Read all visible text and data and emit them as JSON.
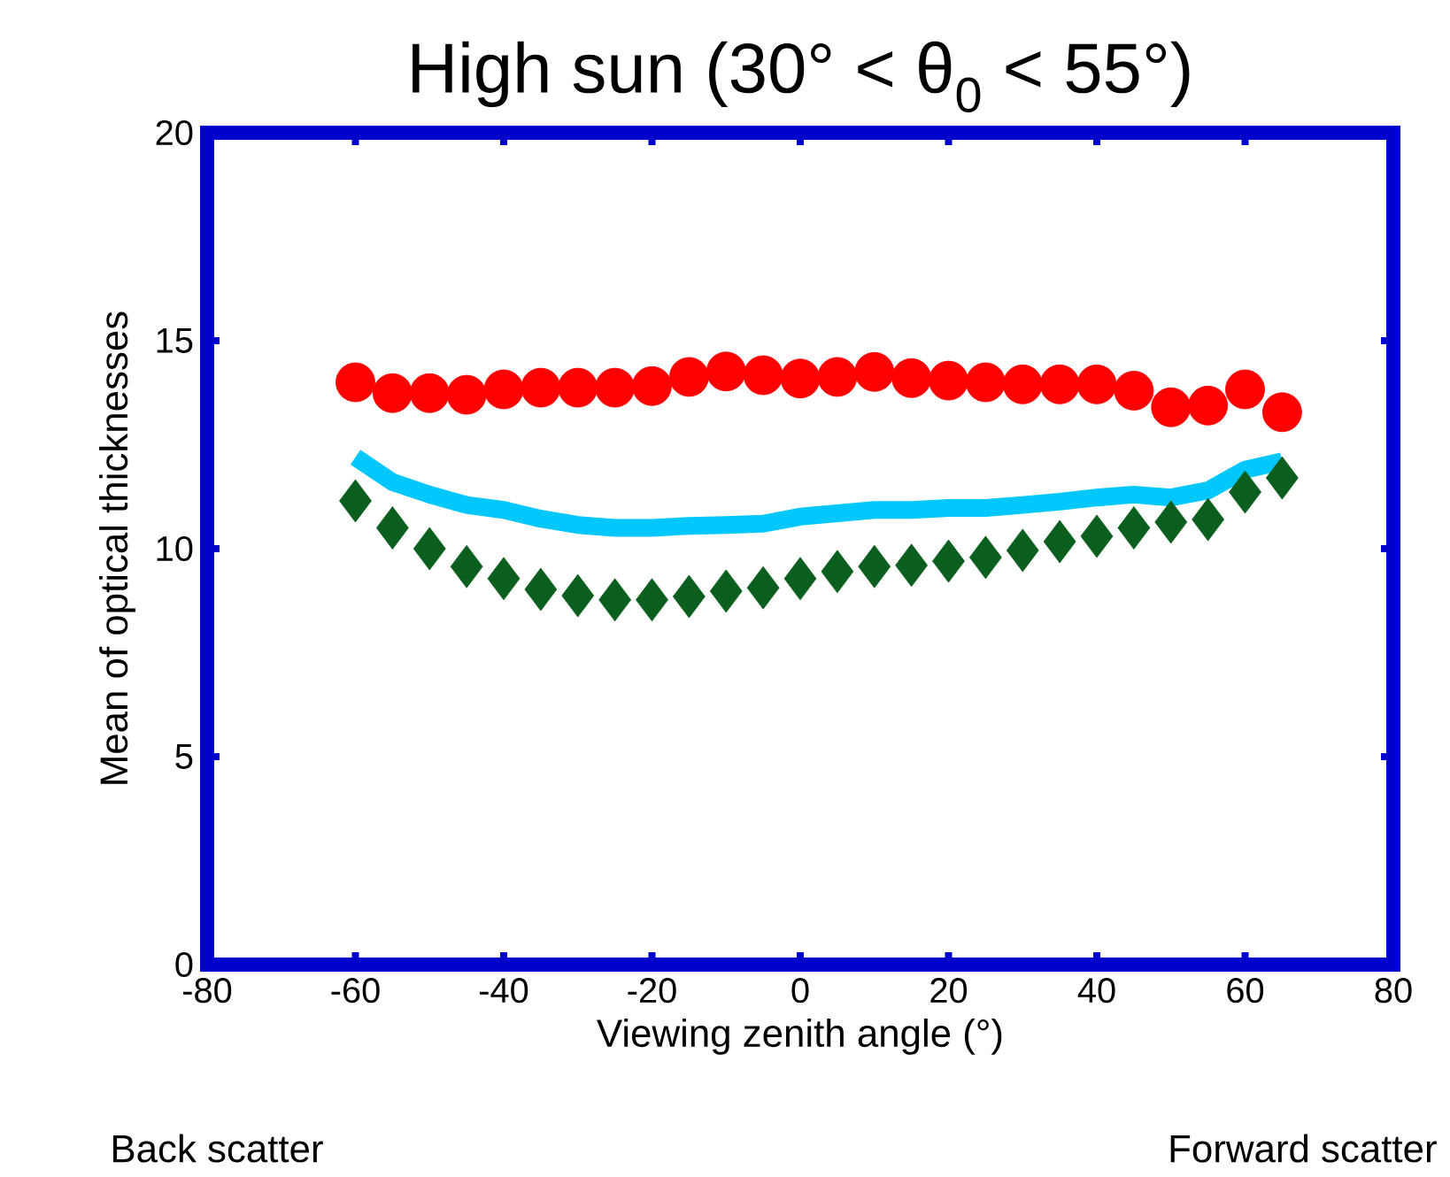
{
  "chart_data": {
    "type": "scatter",
    "title": "High sun (30° < θ$_{0}$ < 55°)",
    "xlabel": "Viewing zenith angle (°)",
    "ylabel": "Mean of optical thicknesses",
    "x": [
      -60,
      -55,
      -50,
      -45,
      -40,
      -35,
      -30,
      -25,
      -20,
      -15,
      -10,
      -5,
      0,
      5,
      10,
      15,
      20,
      25,
      30,
      35,
      40,
      45,
      50,
      55,
      60,
      65
    ],
    "series": [
      {
        "marker": "circle",
        "color": "#ff0000",
        "values": [
          14.0,
          13.74,
          13.74,
          13.7,
          13.83,
          13.87,
          13.87,
          13.87,
          13.91,
          14.13,
          14.26,
          14.17,
          14.09,
          14.13,
          14.25,
          14.1,
          14.04,
          14.0,
          13.95,
          13.95,
          13.95,
          13.8,
          13.4,
          13.44,
          13.83,
          13.28
        ]
      },
      {
        "type": "line",
        "marker": "none",
        "color": "#00c8ff",
        "values": [
          12.2,
          11.6,
          11.3,
          11.05,
          10.93,
          10.72,
          10.57,
          10.5,
          10.5,
          10.55,
          10.57,
          10.6,
          10.77,
          10.85,
          10.93,
          10.93,
          10.98,
          10.98,
          11.05,
          11.13,
          11.23,
          11.3,
          11.23,
          11.4,
          11.9,
          12.1
        ]
      },
      {
        "marker": "diamond",
        "color": "#0a5e1e",
        "values": [
          11.15,
          10.5,
          10.0,
          9.57,
          9.28,
          9.02,
          8.87,
          8.77,
          8.77,
          8.85,
          8.98,
          9.06,
          9.28,
          9.45,
          9.57,
          9.6,
          9.7,
          9.79,
          9.96,
          10.17,
          10.3,
          10.5,
          10.64,
          10.7,
          11.36,
          11.7
        ]
      }
    ],
    "xlim": [
      -80,
      80
    ],
    "xticks": [
      -80,
      -60,
      -40,
      -20,
      0,
      20,
      40,
      60,
      80
    ],
    "ylim": [
      0,
      20
    ],
    "yticks": [
      0,
      5,
      10,
      15,
      20
    ],
    "annotations": [
      "Back scatter",
      "Forward scatter"
    ]
  }
}
